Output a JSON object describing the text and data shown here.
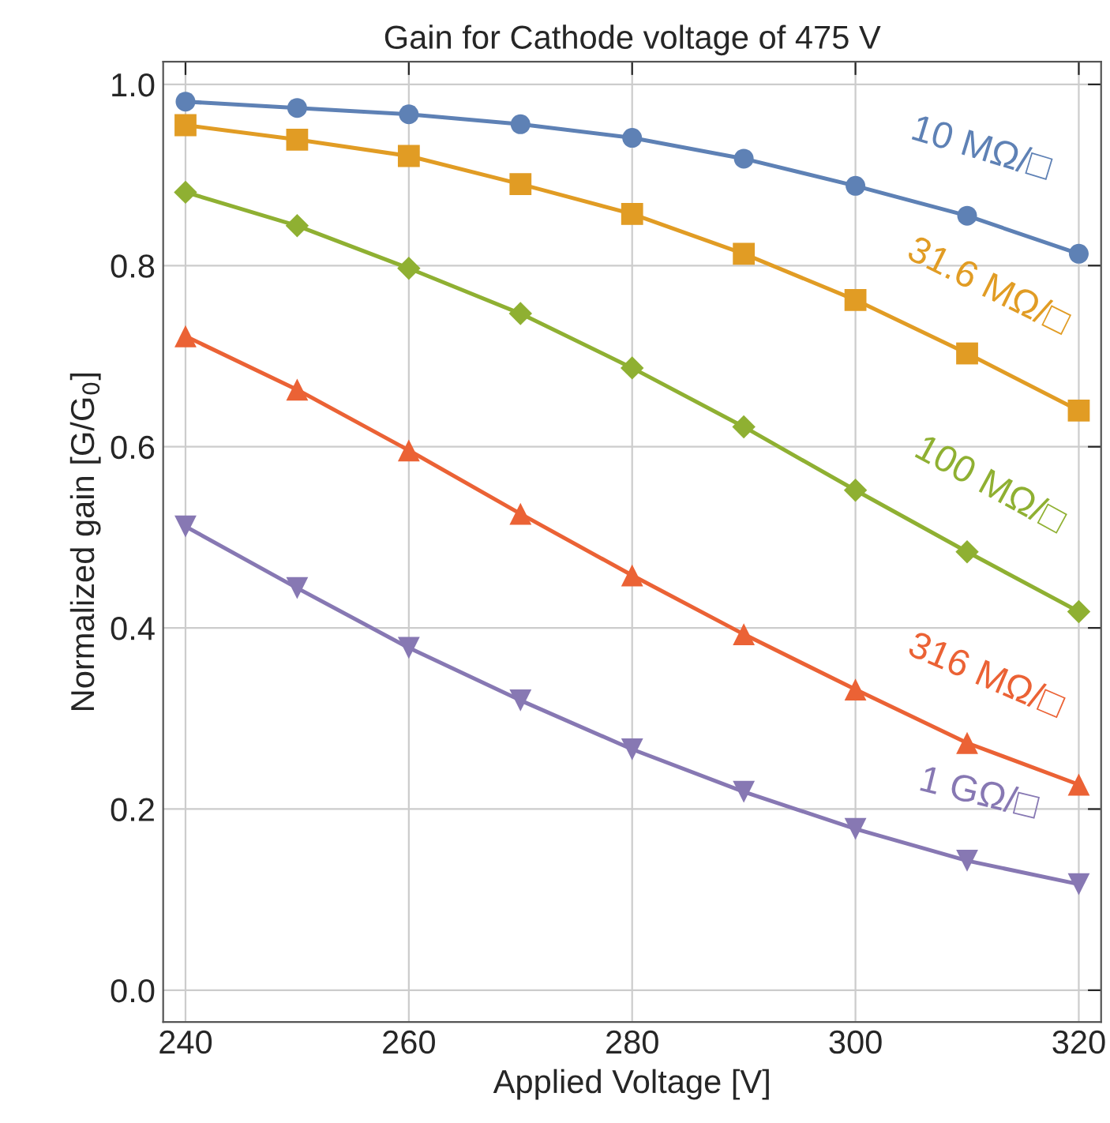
{
  "chart_data": {
    "type": "line",
    "title": "Gain for Cathode voltage of 475 V",
    "xlabel": "Applied Voltage [V]",
    "ylabel": "Normalized gain [G/G$_{0}$]",
    "x": [
      240,
      250,
      260,
      270,
      280,
      290,
      300,
      310,
      320
    ],
    "series": [
      {
        "name": "10 MΩ/□",
        "color": "#5e81b5",
        "marker": "circle",
        "values": [
          0.981,
          0.974,
          0.967,
          0.956,
          0.941,
          0.918,
          0.888,
          0.855,
          0.813
        ]
      },
      {
        "name": "31.6 MΩ/□",
        "color": "#e19c24",
        "marker": "square",
        "values": [
          0.955,
          0.939,
          0.921,
          0.89,
          0.857,
          0.813,
          0.762,
          0.703,
          0.64
        ]
      },
      {
        "name": "100 MΩ/□",
        "color": "#8fb032",
        "marker": "diamond",
        "values": [
          0.881,
          0.844,
          0.797,
          0.747,
          0.687,
          0.622,
          0.552,
          0.484,
          0.418
        ]
      },
      {
        "name": "316 MΩ/□",
        "color": "#eb6235",
        "marker": "triangle",
        "values": [
          0.722,
          0.663,
          0.596,
          0.526,
          0.458,
          0.393,
          0.332,
          0.273,
          0.227
        ]
      },
      {
        "name": "1 GΩ/□",
        "color": "#8778b3",
        "marker": "triangle-down",
        "values": [
          0.512,
          0.444,
          0.378,
          0.32,
          0.266,
          0.219,
          0.178,
          0.143,
          0.117
        ]
      }
    ],
    "xlim": [
      238,
      322
    ],
    "ylim": [
      -0.035,
      1.025
    ],
    "xticks": [
      240,
      260,
      280,
      300,
      320
    ],
    "yticks": [
      {
        "value": 0,
        "label": "0.0"
      },
      {
        "value": 0.2,
        "label": "0.2"
      },
      {
        "value": 0.4,
        "label": "0.4"
      },
      {
        "value": 0.6,
        "label": "0.6"
      },
      {
        "value": 0.8,
        "label": "0.8"
      },
      {
        "value": 1.0,
        "label": "1.0"
      }
    ],
    "grid": true,
    "legend": false
  }
}
